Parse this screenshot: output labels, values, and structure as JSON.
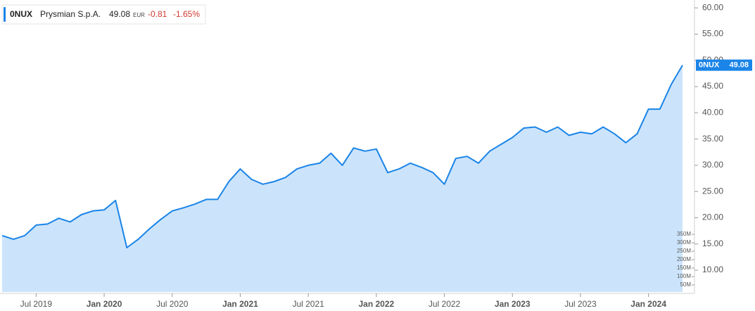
{
  "chart_data": {
    "type": "area",
    "symbol": "0NUX",
    "name": "Prysmian S.p.A.",
    "price": "49.08",
    "currency": "EUR",
    "change": "-0.81",
    "change_pct": "-1.65%",
    "x": [
      "2019-04",
      "2019-05",
      "2019-06",
      "2019-07",
      "2019-08",
      "2019-09",
      "2019-10",
      "2019-11",
      "2019-12",
      "2020-01",
      "2020-02",
      "2020-03",
      "2020-04",
      "2020-05",
      "2020-06",
      "2020-07",
      "2020-08",
      "2020-09",
      "2020-10",
      "2020-11",
      "2020-12",
      "2021-01",
      "2021-02",
      "2021-03",
      "2021-04",
      "2021-05",
      "2021-06",
      "2021-07",
      "2021-08",
      "2021-09",
      "2021-10",
      "2021-11",
      "2021-12",
      "2022-01",
      "2022-02",
      "2022-03",
      "2022-04",
      "2022-05",
      "2022-06",
      "2022-07",
      "2022-08",
      "2022-09",
      "2022-10",
      "2022-11",
      "2022-12",
      "2023-01",
      "2023-02",
      "2023-03",
      "2023-04",
      "2023-05",
      "2023-06",
      "2023-07",
      "2023-08",
      "2023-09",
      "2023-10",
      "2023-11",
      "2023-12",
      "2024-01",
      "2024-02",
      "2024-03",
      "2024-04"
    ],
    "series": [
      {
        "name": "0NUX",
        "color": "#1a84e8",
        "fill": "#cce4fb",
        "values": [
          16.6,
          15.9,
          16.6,
          18.6,
          18.8,
          19.9,
          19.2,
          20.6,
          21.3,
          21.5,
          23.3,
          14.3,
          15.9,
          17.9,
          19.7,
          21.3,
          21.9,
          22.6,
          23.5,
          23.5,
          26.9,
          29.3,
          27.3,
          26.4,
          26.9,
          27.7,
          29.3,
          30.0,
          30.4,
          32.3,
          30.0,
          33.3,
          32.7,
          33.1,
          28.6,
          29.3,
          30.4,
          29.6,
          28.6,
          26.4,
          31.3,
          31.7,
          30.4,
          32.7,
          34.0,
          35.3,
          37.1,
          37.3,
          36.3,
          37.3,
          35.7,
          36.3,
          36.0,
          37.3,
          36.0,
          34.3,
          36.0,
          40.7,
          40.7,
          45.4,
          49.08
        ]
      }
    ],
    "xlim": [
      "2019-04",
      "2024-04"
    ],
    "xticks": [
      {
        "value": "2019-07",
        "label": "Jul 2019"
      },
      {
        "value": "2020-01",
        "label": "Jan 2020"
      },
      {
        "value": "2020-07",
        "label": "Jul 2020"
      },
      {
        "value": "2021-01",
        "label": "Jan 2021"
      },
      {
        "value": "2021-07",
        "label": "Jul 2021"
      },
      {
        "value": "2022-01",
        "label": "Jan 2022"
      },
      {
        "value": "2022-07",
        "label": "Jul 2022"
      },
      {
        "value": "2023-01",
        "label": "Jan 2023"
      },
      {
        "value": "2023-07",
        "label": "Jul 2023"
      },
      {
        "value": "2024-01",
        "label": "Jan 2024"
      }
    ],
    "ylim": [
      5.85,
      61.5
    ],
    "yticks": [
      {
        "value": 10,
        "label": "10.00"
      },
      {
        "value": 15,
        "label": "15.00"
      },
      {
        "value": 20,
        "label": "20.00"
      },
      {
        "value": 25,
        "label": "25.00"
      },
      {
        "value": 30,
        "label": "30.00"
      },
      {
        "value": 35,
        "label": "35.00"
      },
      {
        "value": 40,
        "label": "40.00"
      },
      {
        "value": 45,
        "label": "45.00"
      },
      {
        "value": 50,
        "label": "50.00"
      },
      {
        "value": 55,
        "label": "55.00"
      },
      {
        "value": 60,
        "label": "60.00"
      }
    ],
    "y2lim": [
      0,
      350000000
    ],
    "y2ticks": [
      {
        "value": 50000000,
        "label": "50M"
      },
      {
        "value": 100000000,
        "label": "100M"
      },
      {
        "value": 150000000,
        "label": "150M"
      },
      {
        "value": 200000000,
        "label": "200M"
      },
      {
        "value": 250000000,
        "label": "250M"
      },
      {
        "value": 300000000,
        "label": "300M"
      },
      {
        "value": 350000000,
        "label": "350M"
      }
    ]
  }
}
